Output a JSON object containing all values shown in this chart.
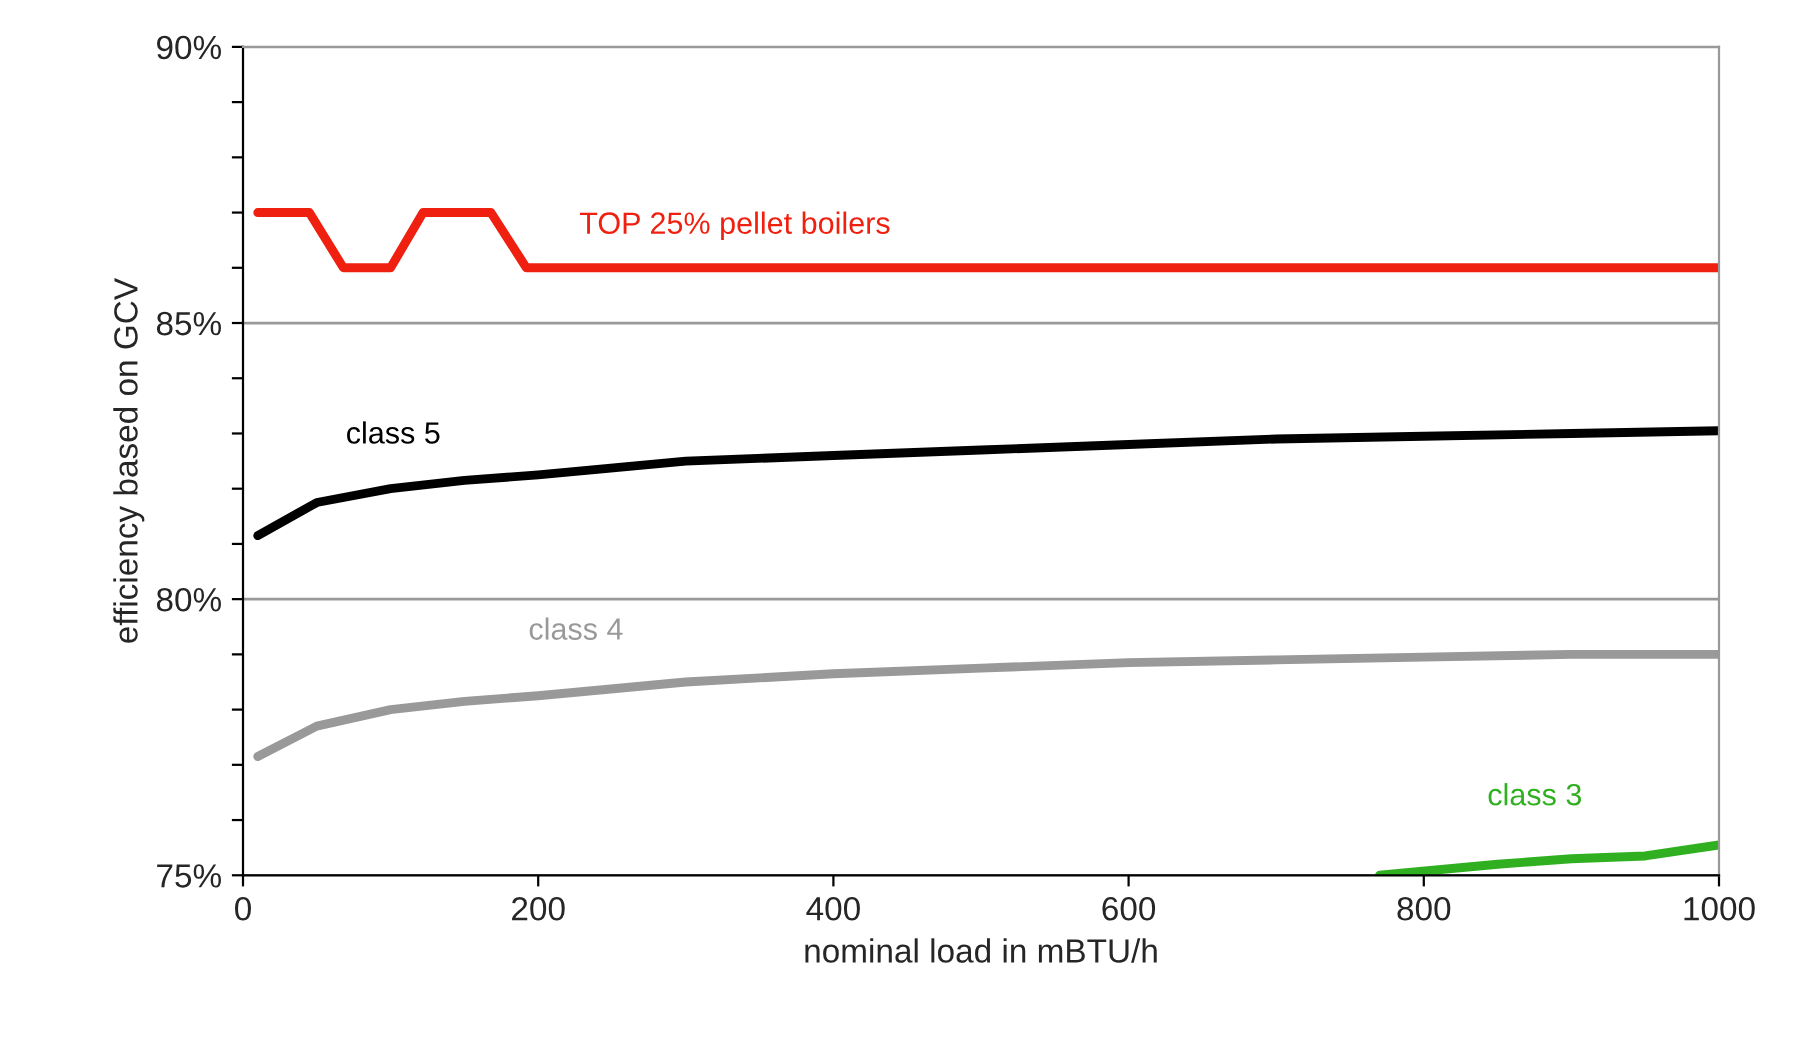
{
  "chart_data": {
    "type": "line",
    "xlabel": "nominal load in mBTU/h",
    "ylabel": "efficiency based on GCV",
    "xlim": [
      0,
      1000
    ],
    "xticks": [
      0,
      200,
      400,
      600,
      800,
      1000
    ],
    "ylim": [
      75,
      90
    ],
    "yticks": [
      {
        "value": 75,
        "label": "75%"
      },
      {
        "value": 76,
        "label": null
      },
      {
        "value": 77,
        "label": null
      },
      {
        "value": 78,
        "label": null
      },
      {
        "value": 79,
        "label": null
      },
      {
        "value": 80,
        "label": "80%"
      },
      {
        "value": 81,
        "label": null
      },
      {
        "value": 82,
        "label": null
      },
      {
        "value": 83,
        "label": null
      },
      {
        "value": 84,
        "label": null
      },
      {
        "value": 85,
        "label": "85%"
      },
      {
        "value": 86,
        "label": null
      },
      {
        "value": 87,
        "label": null
      },
      {
        "value": 88,
        "label": null
      },
      {
        "value": 89,
        "label": null
      },
      {
        "value": 90,
        "label": "90%"
      }
    ],
    "grid": "y",
    "legend": false,
    "marker": "none",
    "line_style": "solid",
    "series": [
      {
        "name": "TOP 25% pellet boilers",
        "color": "#f02010",
        "x": [
          10,
          45,
          68,
          100,
          122,
          168,
          192,
          1000
        ],
        "values": [
          87,
          87,
          86,
          86,
          87,
          87,
          86,
          86
        ]
      },
      {
        "name": "class 5",
        "color": "#000000",
        "x": [
          10,
          50,
          100,
          150,
          200,
          300,
          400,
          500,
          600,
          700,
          800,
          900,
          1000
        ],
        "values": [
          81.15,
          81.75,
          82.0,
          82.15,
          82.25,
          82.5,
          82.6,
          82.7,
          82.8,
          82.9,
          82.95,
          83.0,
          83.05
        ]
      },
      {
        "name": "class 4",
        "color": "#999999",
        "x": [
          10,
          50,
          100,
          150,
          200,
          300,
          400,
          500,
          600,
          700,
          800,
          900,
          1000
        ],
        "values": [
          77.15,
          77.7,
          78.0,
          78.15,
          78.25,
          78.5,
          78.65,
          78.75,
          78.85,
          78.9,
          78.95,
          79.0,
          79.0
        ]
      },
      {
        "name": "class 3",
        "color": "#30b020",
        "x": [
          770,
          850,
          900,
          950,
          1000
        ],
        "values": [
          75.0,
          75.2,
          75.3,
          75.35,
          75.55
        ]
      }
    ]
  }
}
